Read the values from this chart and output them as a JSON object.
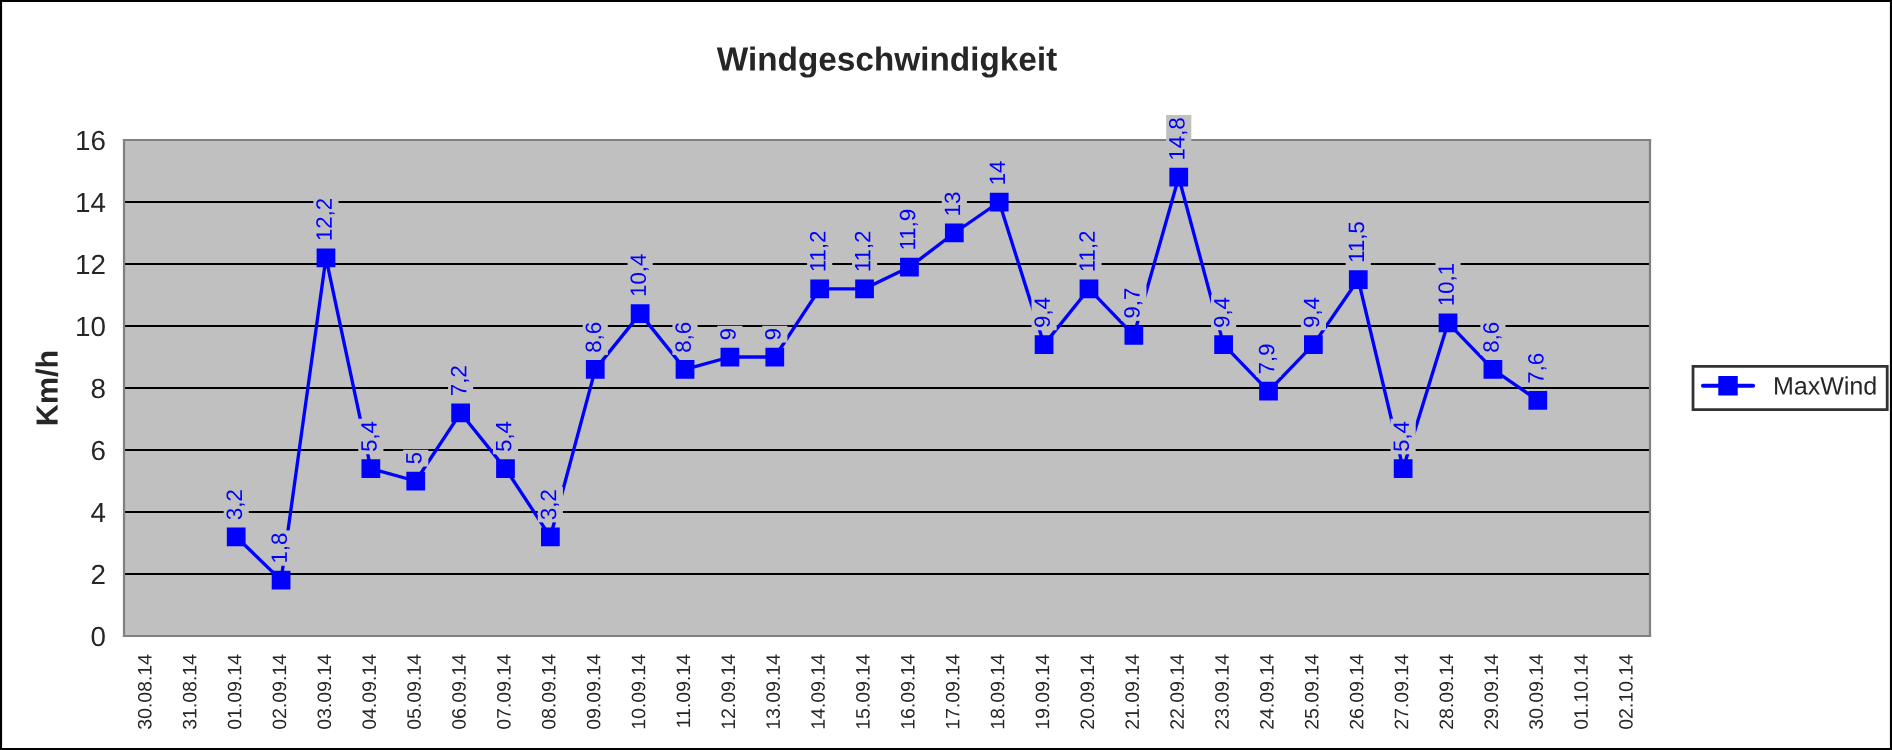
{
  "chart_data": {
    "type": "line",
    "title": "Windgeschwindigkeit",
    "ylabel": "Km/h",
    "categories": [
      "30.08.14",
      "31.08.14",
      "01.09.14",
      "02.09.14",
      "03.09.14",
      "04.09.14",
      "05.09.14",
      "06.09.14",
      "07.09.14",
      "08.09.14",
      "09.09.14",
      "10.09.14",
      "11.09.14",
      "12.09.14",
      "13.09.14",
      "14.09.14",
      "15.09.14",
      "16.09.14",
      "17.09.14",
      "18.09.14",
      "19.09.14",
      "20.09.14",
      "21.09.14",
      "22.09.14",
      "23.09.14",
      "24.09.14",
      "25.09.14",
      "26.09.14",
      "27.09.14",
      "28.09.14",
      "29.09.14",
      "30.09.14",
      "01.10.14",
      "02.10.14"
    ],
    "series": [
      {
        "name": "MaxWind",
        "color": "#0000ff",
        "values": [
          null,
          null,
          3.2,
          1.8,
          12.2,
          5.4,
          5,
          7.2,
          5.4,
          3.2,
          8.6,
          10.4,
          8.6,
          9,
          9,
          11.2,
          11.2,
          11.9,
          13,
          14,
          9.4,
          11.2,
          9.7,
          14.8,
          9.4,
          7.9,
          9.4,
          11.5,
          5.4,
          10.1,
          8.6,
          7.6,
          null,
          null
        ],
        "value_labels": [
          null,
          null,
          "3,2",
          "1,8",
          "12,2",
          "5,4",
          "5",
          "7,2",
          "5,4",
          "3,2",
          "8,6",
          "10,4",
          "8,6",
          "9",
          "9",
          "11,2",
          "11,2",
          "11,9",
          "13",
          "14",
          "9,4",
          "11,2",
          "9,7",
          "14,8",
          "9,4",
          "7,9",
          "9,4",
          "11,5",
          "5,4",
          "10,1",
          "8,6",
          "7,6",
          null,
          null
        ]
      }
    ],
    "ylim": [
      0,
      16
    ],
    "yticks": [
      0,
      2,
      4,
      6,
      8,
      10,
      12,
      14,
      16
    ],
    "grid": "y",
    "legend": "right",
    "marker": "square",
    "line_style": "solid"
  }
}
